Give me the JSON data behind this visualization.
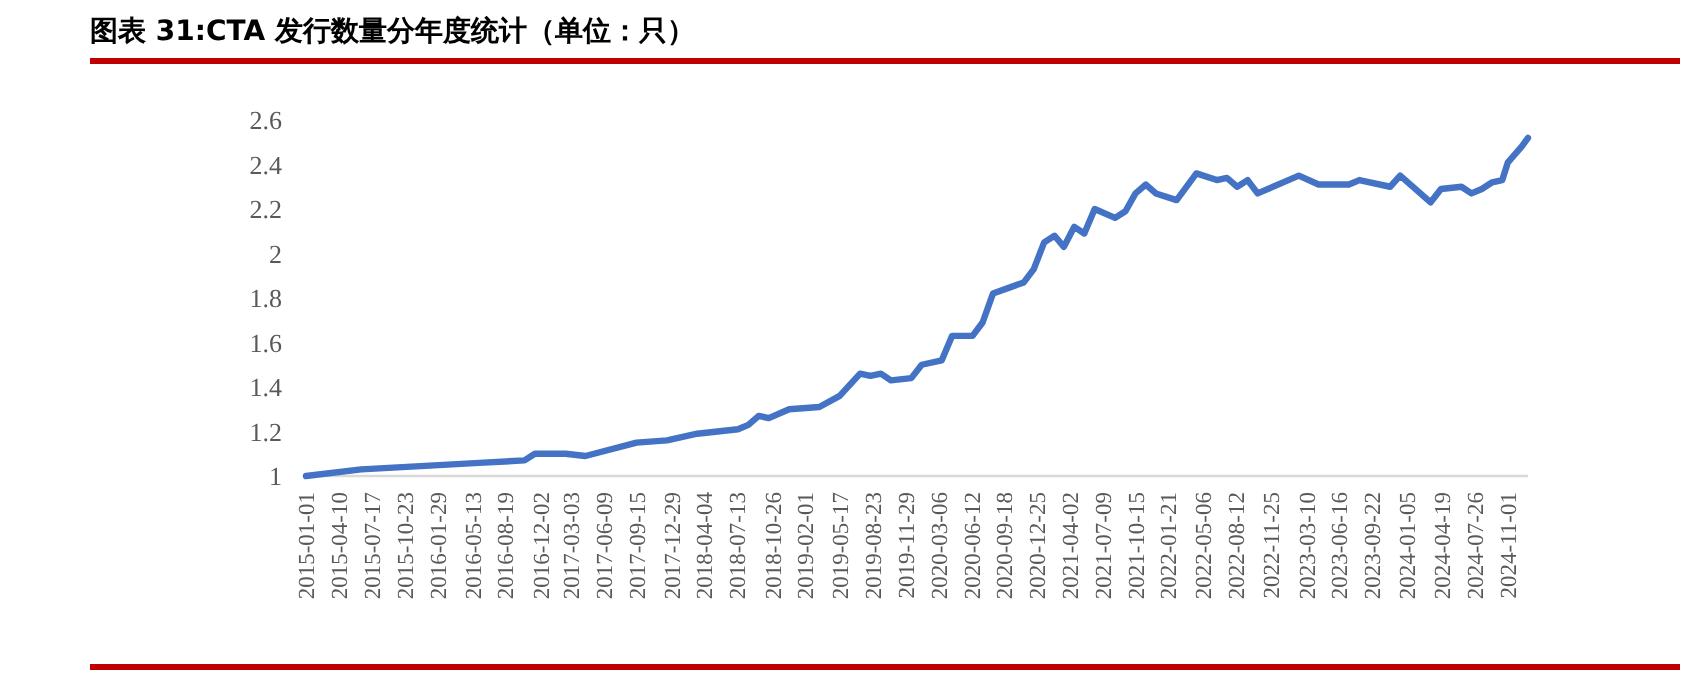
{
  "chart_data": {
    "type": "line",
    "title": "图表 31:CTA 发行数量分年度统计（单位：只）",
    "x": [
      "2015-01-01",
      "2015-06-15",
      "2016-02-15",
      "2016-06-15",
      "2016-10-15",
      "2016-11-15",
      "2017-02-15",
      "2017-04-15",
      "2017-09-15",
      "2017-12-15",
      "2018-03-15",
      "2018-07-15",
      "2018-08-15",
      "2018-09-15",
      "2018-10-15",
      "2018-12-15",
      "2019-03-15",
      "2019-05-15",
      "2019-07-15",
      "2019-08-15",
      "2019-09-15",
      "2019-10-15",
      "2019-12-15",
      "2020-01-15",
      "2020-03-15",
      "2020-04-15",
      "2020-06-15",
      "2020-07-15",
      "2020-08-15",
      "2020-11-15",
      "2020-12-15",
      "2021-01-15",
      "2021-02-15",
      "2021-03-15",
      "2021-04-15",
      "2021-05-15",
      "2021-06-15",
      "2021-08-15",
      "2021-09-15",
      "2021-10-15",
      "2021-11-15",
      "2021-12-15",
      "2022-02-15",
      "2022-04-15",
      "2022-06-15",
      "2022-07-15",
      "2022-08-15",
      "2022-09-15",
      "2022-10-15",
      "2023-01-15",
      "2023-02-15",
      "2023-04-15",
      "2023-07-15",
      "2023-08-15",
      "2023-11-15",
      "2023-12-15",
      "2024-03-15",
      "2024-04-15",
      "2024-06-15",
      "2024-07-15",
      "2024-08-15",
      "2024-09-15",
      "2024-10-15",
      "2024-11-01",
      "2024-12-12",
      "2024-12-31"
    ],
    "series": [
      {
        "color": "#4472c4",
        "values": [
          1.0,
          1.03,
          1.05,
          1.06,
          1.07,
          1.1,
          1.1,
          1.09,
          1.15,
          1.16,
          1.19,
          1.21,
          1.23,
          1.27,
          1.26,
          1.3,
          1.31,
          1.36,
          1.46,
          1.45,
          1.46,
          1.43,
          1.44,
          1.5,
          1.52,
          1.63,
          1.63,
          1.69,
          1.82,
          1.87,
          1.93,
          2.05,
          2.08,
          2.03,
          2.12,
          2.09,
          2.2,
          2.16,
          2.19,
          2.27,
          2.31,
          2.27,
          2.24,
          2.36,
          2.33,
          2.34,
          2.3,
          2.33,
          2.27,
          2.33,
          2.35,
          2.31,
          2.31,
          2.33,
          2.3,
          2.35,
          2.23,
          2.29,
          2.3,
          2.27,
          2.29,
          2.32,
          2.33,
          2.41,
          2.48,
          2.52
        ]
      }
    ],
    "xlim": [
      "2015-01-01",
      "2024-12-31"
    ],
    "xticks": [
      "2015-01-01",
      "2015-04-10",
      "2015-07-17",
      "2015-10-23",
      "2016-01-29",
      "2016-05-13",
      "2016-08-19",
      "2016-12-02",
      "2017-03-03",
      "2017-06-09",
      "2017-09-15",
      "2017-12-29",
      "2018-04-04",
      "2018-07-13",
      "2018-10-26",
      "2019-02-01",
      "2019-05-17",
      "2019-08-23",
      "2019-11-29",
      "2020-03-06",
      "2020-06-12",
      "2020-09-18",
      "2020-12-25",
      "2021-04-02",
      "2021-07-09",
      "2021-10-15",
      "2022-01-21",
      "2022-05-06",
      "2022-08-12",
      "2022-11-25",
      "2023-03-10",
      "2023-06-16",
      "2023-09-22",
      "2024-01-05",
      "2024-04-19",
      "2024-07-26",
      "2024-11-01"
    ],
    "ylim": [
      1,
      2.6
    ],
    "yticks": [
      1,
      1.2,
      1.4,
      1.6,
      1.8,
      2,
      2.2,
      2.4,
      2.6
    ],
    "grid": false,
    "marker": "none",
    "line_style": "solid"
  }
}
